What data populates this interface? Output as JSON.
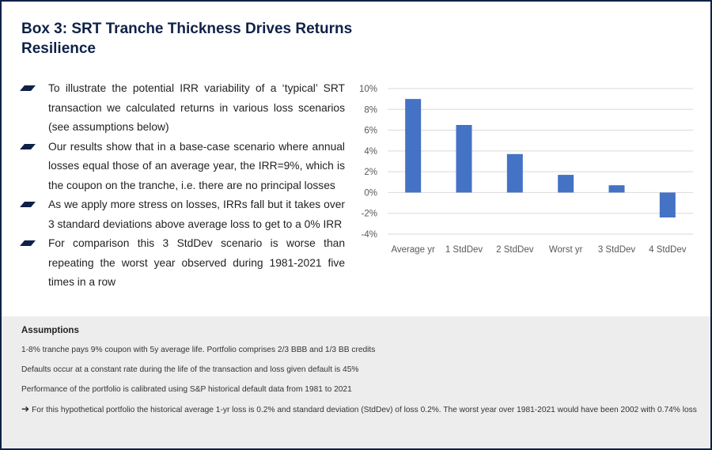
{
  "header": {
    "title": "Box 3: SRT Tranche Thickness Drives Returns Resilience"
  },
  "bullets": [
    {
      "text": "To illustrate the potential IRR variability of a ‘typical’ SRT transaction we calculated returns in various loss scenarios (see assumptions below)"
    },
    {
      "text": "Our results show that in a base-case scenario where annual losses equal those of an average year, the IRR=9%, which is the coupon on the tranche, i.e. there are no principal losses"
    },
    {
      "text": "As we apply more stress on losses, IRRs fall but it takes over 3 standard deviations above average loss to get to a 0% IRR"
    },
    {
      "text": "For comparison this 3 StdDev scenario is worse than repeating the worst year observed during 1981-2021 five times in a row"
    }
  ],
  "colors": {
    "brand_navy": "#0f2148",
    "bar_blue": "#4472c4",
    "assumptions_bg": "#ededed"
  },
  "chart_data": {
    "type": "bar",
    "categories": [
      "Average yr",
      "1 StdDev",
      "2 StdDev",
      "Worst yr",
      "3 StdDev",
      "4 StdDev"
    ],
    "values": [
      9.0,
      6.5,
      3.7,
      1.7,
      0.7,
      -2.4
    ],
    "title": "",
    "xlabel": "",
    "ylabel": "",
    "ylim": [
      -4,
      10
    ],
    "yticks": [
      "10%",
      "8%",
      "6%",
      "4%",
      "2%",
      "0%",
      "-2%",
      "-4%"
    ],
    "ytick_values": [
      10,
      8,
      6,
      4,
      2,
      0,
      -2,
      -4
    ],
    "grid": true,
    "legend": "none"
  },
  "assumptions": {
    "title": "Assumptions",
    "lines": [
      "1-8% tranche pays 9% coupon with 5y average life. Portfolio comprises 2/3 BBB and 1/3 BB credits",
      "Defaults occur at a constant rate during the life of the transaction and loss given default is 45%",
      "Performance of the portfolio is calibrated using S&P historical default data from 1981 to 2021"
    ],
    "arrow_icon": "right-arrow-icon",
    "arrow_line": "For this hypothetical portfolio the historical average 1-yr loss is 0.2% and standard deviation (StdDev) of loss 0.2%. The worst year over 1981-2021 would have been 2002 with 0.74% loss"
  }
}
